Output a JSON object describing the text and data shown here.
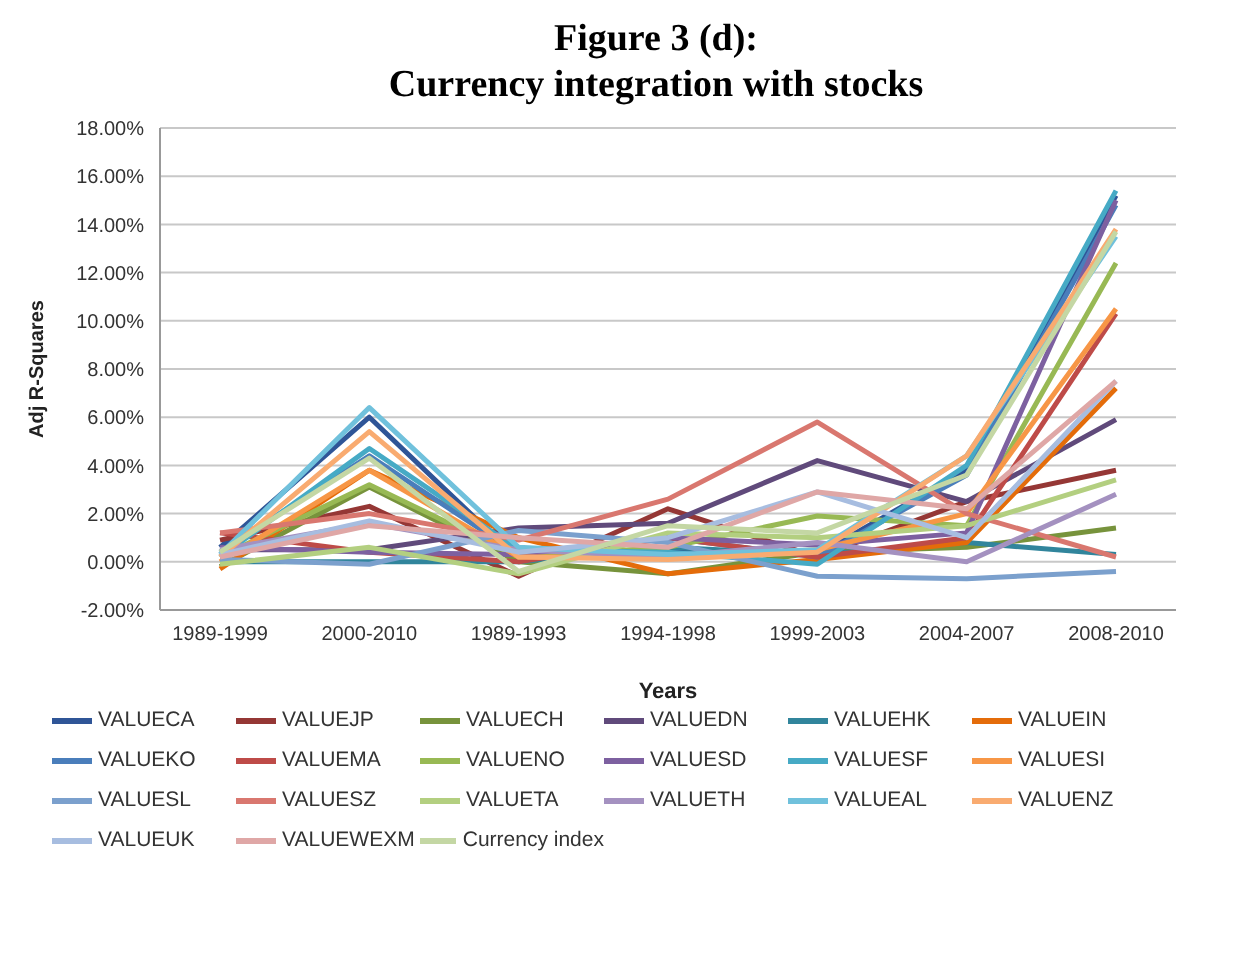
{
  "chart_data": {
    "type": "line",
    "title": "Figure 3 (d):\nCurrency integration with stocks",
    "xlabel": "Years",
    "ylabel": "Adj R-Squares",
    "categories": [
      "1989-1999",
      "2000-2010",
      "1989-1993",
      "1994-1998",
      "1999-2003",
      "2004-2007",
      "2008-2010"
    ],
    "ylim": [
      -2,
      18
    ],
    "yticks": [
      {
        "value": -2,
        "label": "-2.00%"
      },
      {
        "value": 0,
        "label": "0.00%"
      },
      {
        "value": 2,
        "label": "2.00%"
      },
      {
        "value": 4,
        "label": "4.00%"
      },
      {
        "value": 6,
        "label": "6.00%"
      },
      {
        "value": 8,
        "label": "8.00%"
      },
      {
        "value": 10,
        "label": "10.00%"
      },
      {
        "value": 12,
        "label": "12.00%"
      },
      {
        "value": 14,
        "label": "14.00%"
      },
      {
        "value": 16,
        "label": "16.00%"
      },
      {
        "value": 18,
        "label": "18.00%"
      }
    ],
    "grid": "y",
    "legend": "bottom",
    "marker": "none",
    "line_style": "solid",
    "series": [
      {
        "name": "VALUECA",
        "color": "#2f5597",
        "values": [
          0.6,
          6.0,
          0.1,
          0.5,
          0.3,
          3.8,
          15.2
        ]
      },
      {
        "name": "VALUEJP",
        "color": "#953735",
        "values": [
          0.9,
          2.3,
          -0.6,
          2.2,
          0.2,
          2.5,
          3.8
        ]
      },
      {
        "name": "VALUECH",
        "color": "#77933c",
        "values": [
          -0.2,
          3.1,
          0,
          -0.5,
          0.4,
          0.6,
          1.4
        ]
      },
      {
        "name": "VALUEDN",
        "color": "#604a7b",
        "values": [
          0.5,
          0.5,
          1.4,
          1.6,
          4.2,
          2.5,
          5.9
        ]
      },
      {
        "name": "VALUEHK",
        "color": "#31859c",
        "values": [
          0,
          0,
          0,
          0.6,
          0.3,
          0.8,
          0.3
        ]
      },
      {
        "name": "VALUEIN",
        "color": "#e46c0a",
        "values": [
          -0.3,
          3.8,
          1.0,
          -0.5,
          0.1,
          0.8,
          7.2
        ]
      },
      {
        "name": "VALUEKO",
        "color": "#4a7ebb",
        "values": [
          0.4,
          4.4,
          0.3,
          1.0,
          0.2,
          3.6,
          14.8
        ]
      },
      {
        "name": "VALUEMA",
        "color": "#be4b48",
        "values": [
          1.2,
          0.4,
          0,
          1.0,
          0.2,
          1.0,
          10.3
        ]
      },
      {
        "name": "VALUENO",
        "color": "#98b954",
        "values": [
          0.2,
          3.2,
          0.2,
          0.6,
          1.9,
          1.5,
          12.4
        ]
      },
      {
        "name": "VALUESD",
        "color": "#7d60a0",
        "values": [
          0.6,
          0.4,
          0.3,
          1.0,
          0.7,
          1.2,
          15.0
        ]
      },
      {
        "name": "VALUESF",
        "color": "#46aac5",
        "values": [
          0.2,
          4.7,
          0.5,
          0.4,
          -0.1,
          4.0,
          15.4
        ]
      },
      {
        "name": "VALUESI",
        "color": "#f79646",
        "values": [
          0,
          3.8,
          0.2,
          0.2,
          0.5,
          2.0,
          10.5
        ]
      },
      {
        "name": "VALUESL",
        "color": "#7ba0cd",
        "values": [
          0.1,
          -0.1,
          1.3,
          0.8,
          -0.6,
          -0.7,
          -0.4
        ]
      },
      {
        "name": "VALUESZ",
        "color": "#d9776f",
        "values": [
          1.2,
          2.0,
          0.9,
          2.6,
          5.8,
          2.0,
          0.2
        ]
      },
      {
        "name": "VALUETA",
        "color": "#b3cf80",
        "values": [
          -0.1,
          0.6,
          -0.5,
          1.2,
          1.0,
          1.5,
          3.4
        ]
      },
      {
        "name": "VALUETH",
        "color": "#a491c0",
        "values": [
          0.5,
          1.6,
          0.5,
          0.2,
          0.8,
          0,
          2.8
        ]
      },
      {
        "name": "VALUEAL",
        "color": "#70c1dc",
        "values": [
          0.3,
          6.4,
          0.6,
          0.3,
          0.5,
          4.4,
          13.5
        ]
      },
      {
        "name": "VALUENZ",
        "color": "#f9ab70",
        "values": [
          0.2,
          5.4,
          0.2,
          0.1,
          0.4,
          4.4,
          13.8
        ]
      },
      {
        "name": "VALUEUK",
        "color": "#a7bde0",
        "values": [
          0.3,
          1.7,
          0.4,
          1.0,
          2.9,
          1.0,
          7.5
        ]
      },
      {
        "name": "VALUEWEXM",
        "color": "#dfa7a6",
        "values": [
          0.2,
          1.5,
          1.0,
          0.6,
          2.9,
          2.2,
          7.5
        ]
      },
      {
        "name": "Currency index",
        "color": "#c4d7a4",
        "values": [
          0.4,
          4.3,
          -0.4,
          1.5,
          1.2,
          3.6,
          13.7
        ]
      }
    ]
  }
}
